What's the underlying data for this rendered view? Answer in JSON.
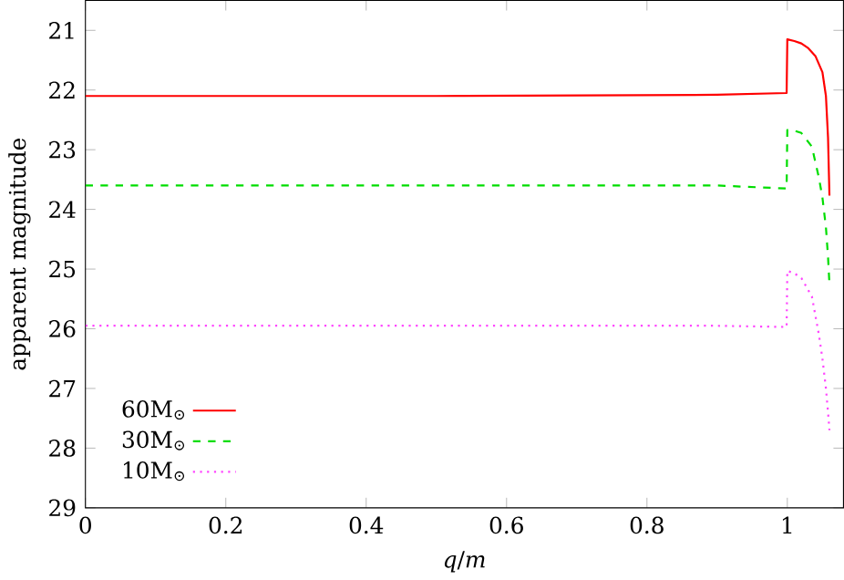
{
  "chart_data": {
    "type": "line",
    "xlabel": "*q*/*m*",
    "ylabel": "apparent magnitude",
    "xlim": [
      0,
      1.08
    ],
    "ylim": [
      29,
      20.5
    ],
    "xticks": [
      0,
      0.2,
      0.4,
      0.6,
      0.8,
      1
    ],
    "yticks": [
      21,
      22,
      23,
      24,
      25,
      26,
      27,
      28,
      29
    ],
    "legend": "bottom left",
    "marker": "none",
    "series": [
      {
        "name": "60M$_{⊙}$",
        "color": "#ff0000",
        "line_style": "solid",
        "x": [
          0,
          0.5,
          0.9,
          0.999,
          1.0,
          1.01,
          1.02,
          1.03,
          1.04,
          1.05,
          1.055,
          1.058,
          1.06
        ],
        "values": [
          22.1,
          22.1,
          22.08,
          22.05,
          21.15,
          21.18,
          21.22,
          21.3,
          21.43,
          21.7,
          22.1,
          22.8,
          23.77
        ]
      },
      {
        "name": "30M$_{⊙}$",
        "color": "#00dd00",
        "line_style": "dashed",
        "x": [
          0,
          0.5,
          0.9,
          0.999,
          1.0,
          1.01,
          1.02,
          1.035,
          1.045,
          1.05,
          1.055,
          1.058,
          1.06
        ],
        "values": [
          23.6,
          23.6,
          23.6,
          23.65,
          22.67,
          22.68,
          22.72,
          22.95,
          23.47,
          23.8,
          24.3,
          24.8,
          25.25
        ]
      },
      {
        "name": "10M$_{⊙}$",
        "color": "#ff44ff",
        "line_style": "dotted",
        "x": [
          0,
          0.5,
          0.9,
          0.999,
          1.0,
          1.01,
          1.02,
          1.035,
          1.045,
          1.05,
          1.055,
          1.058,
          1.06
        ],
        "values": [
          25.95,
          25.95,
          25.95,
          25.97,
          25.03,
          25.07,
          25.15,
          25.46,
          26.1,
          26.5,
          27.0,
          27.4,
          27.7
        ]
      }
    ]
  }
}
